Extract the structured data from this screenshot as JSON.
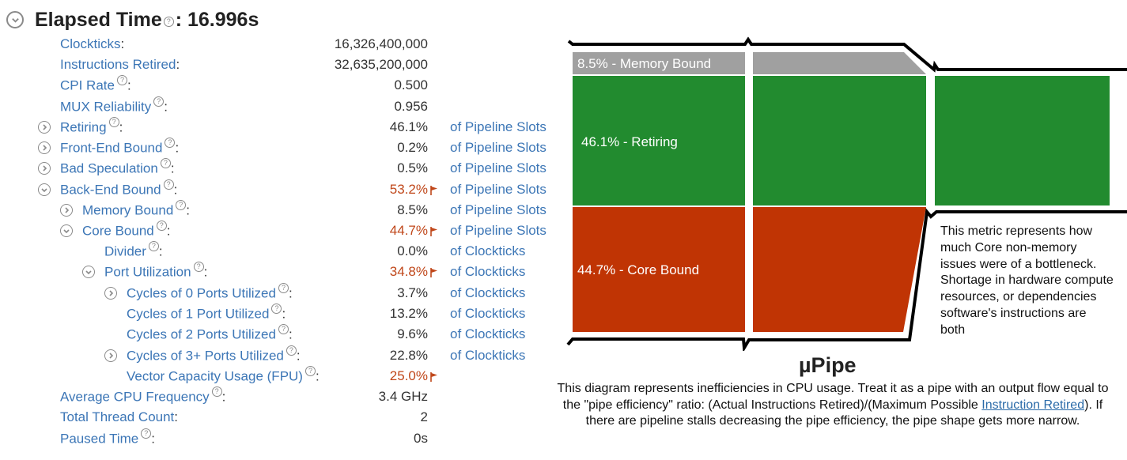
{
  "header": {
    "title": "Elapsed Time",
    "help_glyph": "?",
    "separator": ":",
    "value": "16.996s"
  },
  "metrics": [
    {
      "label": "Clockticks",
      "value": "16,326,400,000",
      "unit": "",
      "help": false,
      "expander": "none",
      "indent": 0,
      "highlight": false
    },
    {
      "label": "Instructions Retired",
      "value": "32,635,200,000",
      "unit": "",
      "help": false,
      "expander": "none",
      "indent": 0,
      "highlight": false
    },
    {
      "label": "CPI Rate",
      "value": "0.500",
      "unit": "",
      "help": true,
      "expander": "none",
      "indent": 0,
      "highlight": false
    },
    {
      "label": "MUX Reliability",
      "value": "0.956",
      "unit": "",
      "help": true,
      "expander": "none",
      "indent": 0,
      "highlight": false
    },
    {
      "label": "Retiring",
      "value": "46.1%",
      "unit": "of Pipeline Slots",
      "help": true,
      "expander": "collapsed",
      "indent": 0,
      "highlight": false
    },
    {
      "label": "Front-End Bound",
      "value": "0.2%",
      "unit": "of Pipeline Slots",
      "help": true,
      "expander": "collapsed",
      "indent": 0,
      "highlight": false
    },
    {
      "label": "Bad Speculation",
      "value": "0.5%",
      "unit": "of Pipeline Slots",
      "help": true,
      "expander": "collapsed",
      "indent": 0,
      "highlight": false
    },
    {
      "label": "Back-End Bound",
      "value": "53.2%",
      "unit": "of Pipeline Slots",
      "help": true,
      "expander": "expanded",
      "indent": 0,
      "highlight": true
    },
    {
      "label": "Memory Bound",
      "value": "8.5%",
      "unit": "of Pipeline Slots",
      "help": true,
      "expander": "collapsed",
      "indent": 1,
      "highlight": false
    },
    {
      "label": "Core Bound",
      "value": "44.7%",
      "unit": "of Pipeline Slots",
      "help": true,
      "expander": "expanded",
      "indent": 1,
      "highlight": true
    },
    {
      "label": "Divider",
      "value": "0.0%",
      "unit": "of Clockticks",
      "help": true,
      "expander": "none",
      "indent": 2,
      "highlight": false
    },
    {
      "label": "Port Utilization",
      "value": "34.8%",
      "unit": "of Clockticks",
      "help": true,
      "expander": "expanded",
      "indent": 2,
      "highlight": true
    },
    {
      "label": "Cycles of 0 Ports Utilized",
      "value": "3.7%",
      "unit": "of Clockticks",
      "help": true,
      "expander": "collapsed",
      "indent": 3,
      "highlight": false
    },
    {
      "label": "Cycles of 1 Port Utilized",
      "value": "13.2%",
      "unit": "of Clockticks",
      "help": true,
      "expander": "none",
      "indent": 3,
      "highlight": false
    },
    {
      "label": "Cycles of 2 Ports Utilized",
      "value": "9.6%",
      "unit": "of Clockticks",
      "help": true,
      "expander": "none",
      "indent": 3,
      "highlight": false
    },
    {
      "label": "Cycles of 3+ Ports Utilized",
      "value": "22.8%",
      "unit": "of Clockticks",
      "help": true,
      "expander": "collapsed",
      "indent": 3,
      "highlight": false
    },
    {
      "label": "Vector Capacity Usage (FPU)",
      "value": "25.0%",
      "unit": "",
      "help": true,
      "expander": "none",
      "indent": 3,
      "highlight": true
    },
    {
      "label": "Average CPU Frequency",
      "value": "3.4 GHz",
      "unit": "",
      "help": true,
      "expander": "none",
      "indent": 0,
      "highlight": false
    },
    {
      "label": "Total Thread Count",
      "value": "2",
      "unit": "",
      "help": false,
      "expander": "none",
      "indent": 0,
      "highlight": false
    },
    {
      "label": "Paused Time",
      "value": "0s",
      "unit": "",
      "help": true,
      "expander": "none",
      "indent": 0,
      "highlight": false
    }
  ],
  "pipe": {
    "memory_label": "8.5% - Memory Bound",
    "retiring_label": "46.1% - Retiring",
    "core_label": "44.7% - Core Bound",
    "memory_pct": 8.5,
    "retiring_pct": 46.1,
    "core_pct": 44.7,
    "colors": {
      "memory": "#a0a0a0",
      "retiring": "#228b2f",
      "core": "#c03404",
      "outline": "#000000"
    },
    "tooltip": "This metric represents how much Core non-memory issues were of a bottleneck. Shortage in hardware compute resources, or dependencies software's instructions are both"
  },
  "upipe": {
    "title": "µPipe",
    "desc_before": "This diagram represents inefficiencies in CPU usage. Treat it as a pipe with an output flow equal to the \"pipe efficiency\" ratio: (Actual Instructions Retired)/(Maximum Possible ",
    "desc_link": "Instruction Retired",
    "desc_after": "). If there are pipeline stalls decreasing the pipe efficiency, the pipe shape gets more narrow."
  }
}
